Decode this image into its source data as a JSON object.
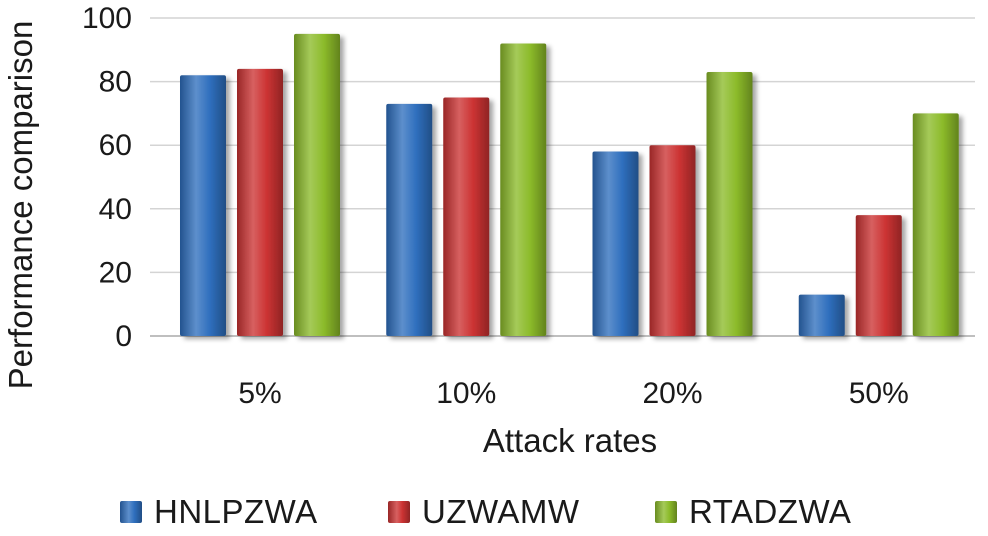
{
  "chart_data": {
    "type": "bar",
    "title": "",
    "xlabel": "Attack rates",
    "ylabel": "Performance comparison",
    "categories": [
      "5%",
      "10%",
      "20%",
      "50%"
    ],
    "series": [
      {
        "name": "HNLPZWA",
        "color": "#2f6fbe",
        "values": [
          82,
          73,
          58,
          13
        ]
      },
      {
        "name": "UZWAMW",
        "color": "#cc3333",
        "values": [
          84,
          75,
          60,
          38
        ]
      },
      {
        "name": "RTADZWA",
        "color": "#8cbb2a",
        "values": [
          95,
          92,
          83,
          70
        ]
      }
    ],
    "ylim": [
      0,
      100
    ],
    "yticks": [
      0,
      20,
      40,
      60,
      80,
      100
    ],
    "grid": true,
    "legend_position": "bottom"
  }
}
